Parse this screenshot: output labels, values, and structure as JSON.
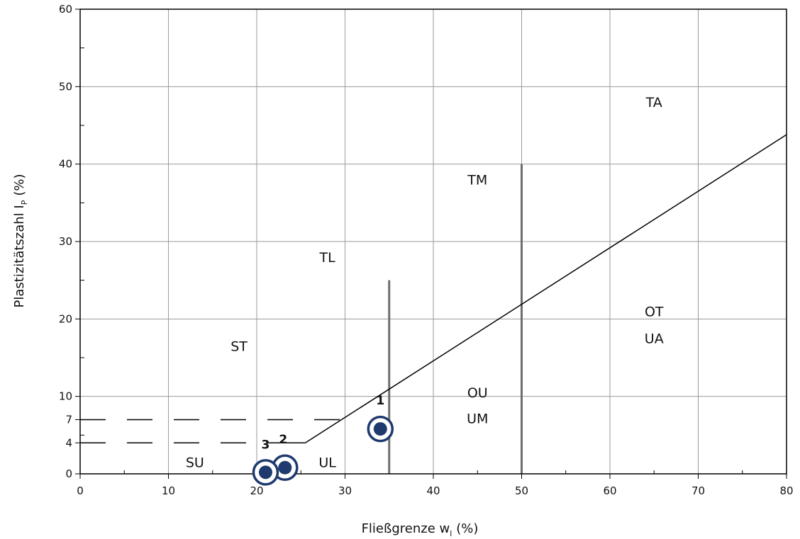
{
  "chart_data": {
    "type": "scatter",
    "xlabel": "Fließgrenze w",
    "xlabel_sub": "l",
    "xlabel_unit": "(%)",
    "ylabel": "Plastizitätszahl I",
    "ylabel_sub": "P",
    "ylabel_unit": "(%)",
    "xlim": [
      0,
      80
    ],
    "ylim": [
      0,
      60
    ],
    "x_ticks": [
      0,
      10,
      20,
      30,
      40,
      50,
      60,
      70,
      80
    ],
    "y_ticks": [
      0,
      4,
      7,
      10,
      20,
      30,
      40,
      50,
      60
    ],
    "grid": true,
    "a_line": {
      "x": [
        25.5,
        80
      ],
      "y": [
        4,
        43.8
      ]
    },
    "dashed_lines": [
      {
        "y": 7,
        "x": [
          0,
          30
        ]
      },
      {
        "y": 4,
        "x": [
          0,
          25.5
        ]
      }
    ],
    "vertical_lines": [
      {
        "x": 35,
        "y": [
          0,
          25
        ]
      },
      {
        "x": 50,
        "y": [
          0,
          40
        ]
      }
    ],
    "zone_labels": [
      {
        "text": "TA",
        "x": 65,
        "y": 48
      },
      {
        "text": "TM",
        "x": 45,
        "y": 38
      },
      {
        "text": "TL",
        "x": 28,
        "y": 28
      },
      {
        "text": "OT",
        "x": 65,
        "y": 21
      },
      {
        "text": "UA",
        "x": 65,
        "y": 17.5
      },
      {
        "text": "ST",
        "x": 18,
        "y": 16.5
      },
      {
        "text": "OU",
        "x": 45,
        "y": 10.5
      },
      {
        "text": "UM",
        "x": 45,
        "y": 7.2
      },
      {
        "text": "SU",
        "x": 13,
        "y": 1.5
      },
      {
        "text": "UL",
        "x": 28,
        "y": 1.5
      }
    ],
    "points": [
      {
        "label": "1",
        "x": 34,
        "y": 5.8,
        "label_x": 34,
        "label_y": 9.5
      },
      {
        "label": "2",
        "x": 23.2,
        "y": 0.8,
        "label_x": 23,
        "label_y": 4.5
      },
      {
        "label": "3",
        "x": 21,
        "y": 0.2,
        "label_x": 21,
        "label_y": 3.8
      }
    ],
    "colors": {
      "point": "#1f3a6e",
      "grid": "#9a9a9a",
      "vertical_line": "#6e6e6e",
      "line": "#000000"
    }
  }
}
